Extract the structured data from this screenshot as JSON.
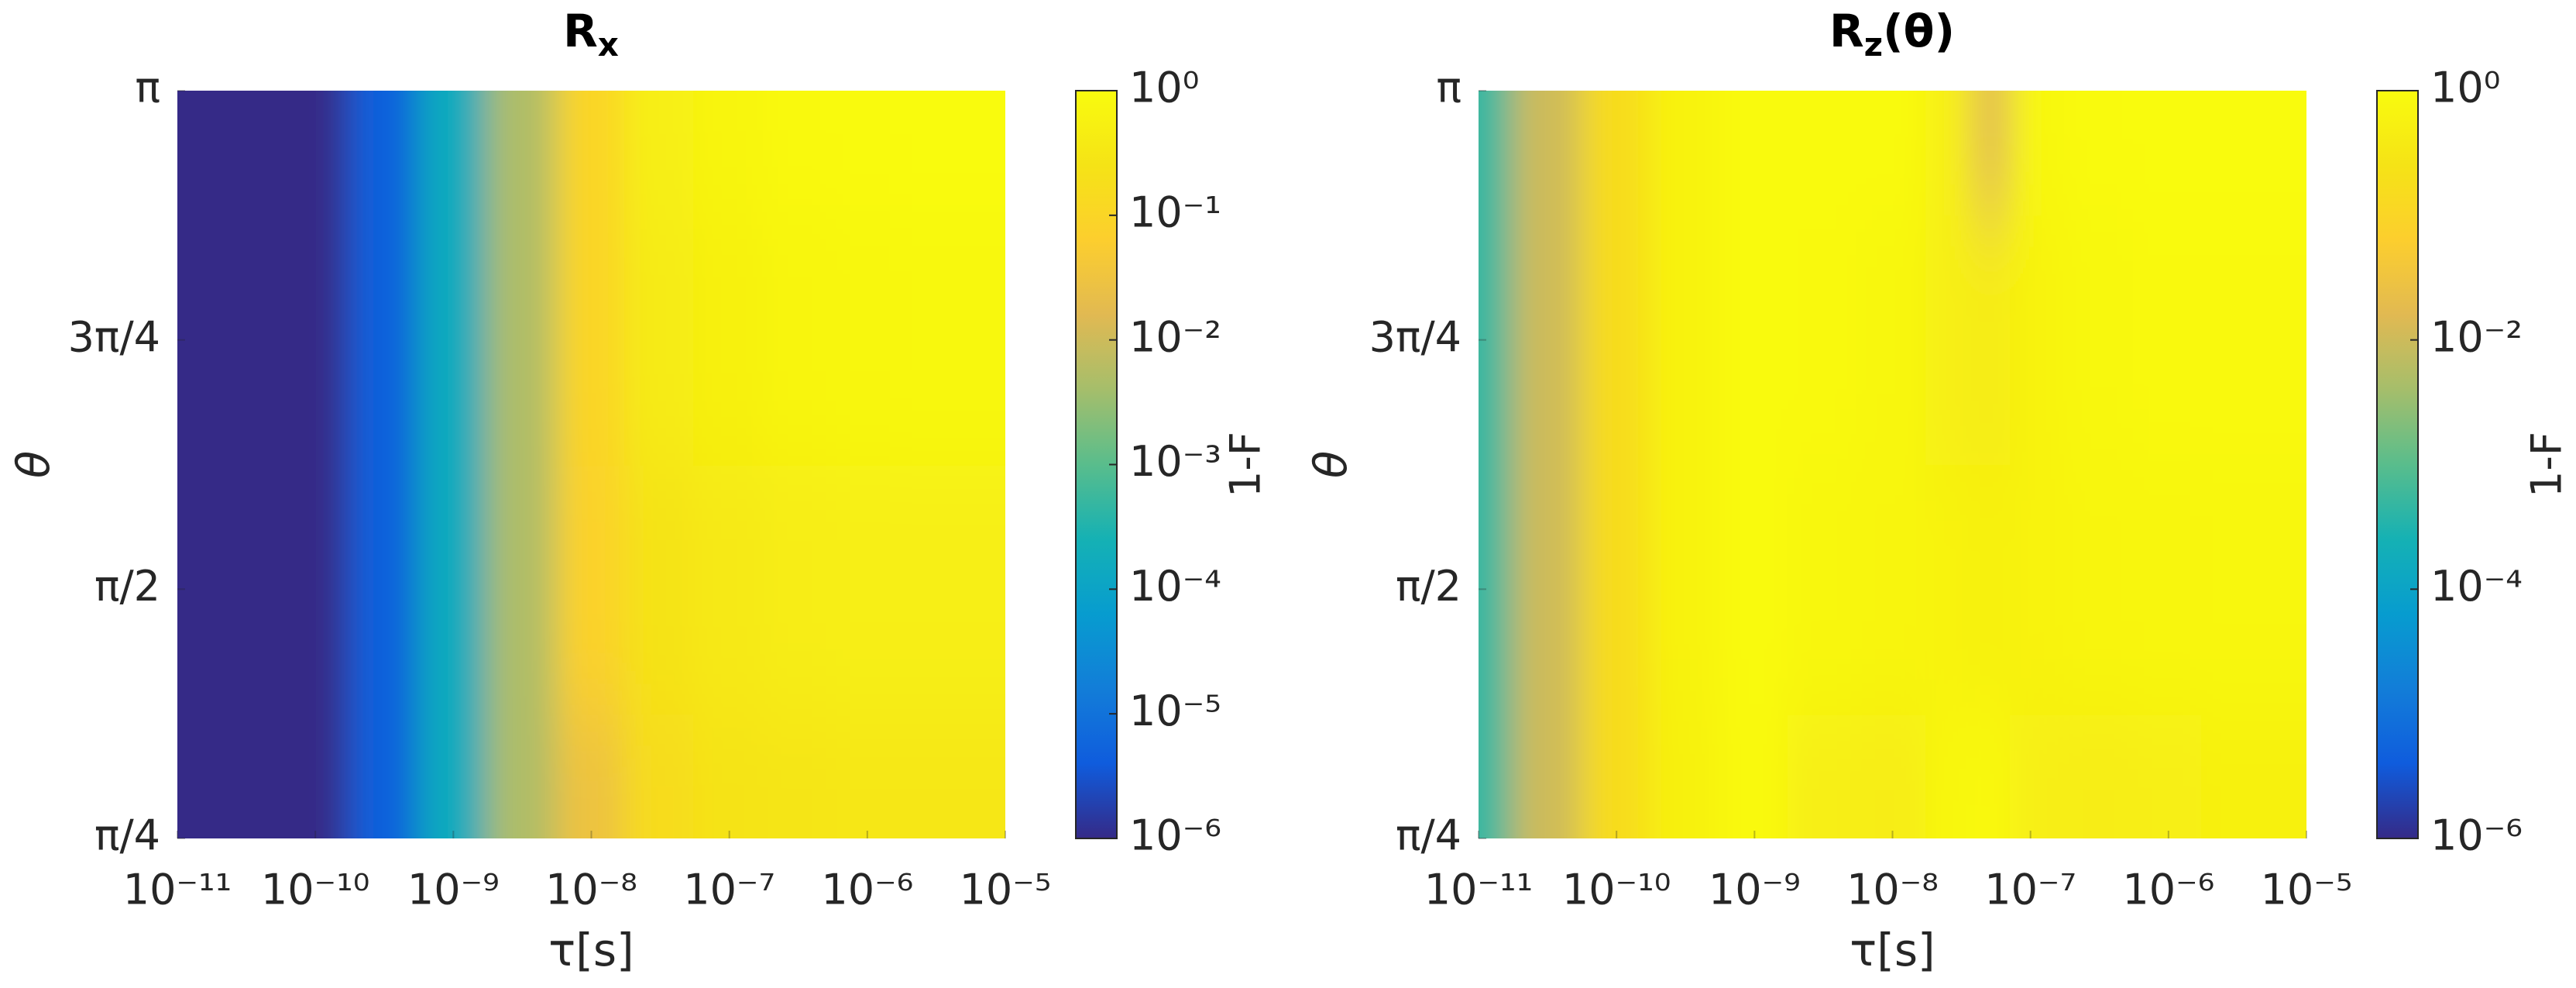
{
  "chart_data": [
    {
      "type": "heatmap",
      "title": "R",
      "title_sub": "x",
      "xlabel": "τ[s]",
      "ylabel": "θ",
      "xscale": "log",
      "x": [
        1e-11,
        3e-11,
        1e-10,
        3e-10,
        1e-09,
        3e-09,
        1e-08,
        3e-08,
        1e-07,
        3e-07,
        1e-06,
        3e-06,
        1e-05
      ],
      "y": [
        0.7854,
        1.5708,
        2.3562,
        3.1416
      ],
      "z": [
        [
          1e-06,
          1e-06,
          1e-06,
          5e-06,
          0.00016,
          0.005,
          0.03,
          0.16,
          0.25,
          0.28,
          0.32,
          0.32,
          0.32
        ],
        [
          1e-06,
          1e-06,
          1e-06,
          5e-06,
          0.00016,
          0.005,
          0.08,
          0.25,
          0.35,
          0.45,
          0.5,
          0.5,
          0.5
        ],
        [
          1e-06,
          1e-06,
          1e-06,
          5e-06,
          0.00016,
          0.005,
          0.1,
          0.4,
          0.56,
          0.7,
          0.8,
          0.83,
          0.83
        ],
        [
          1e-06,
          1e-06,
          1e-06,
          5e-06,
          0.00016,
          0.005,
          0.1,
          0.5,
          0.7,
          0.9,
          0.95,
          0.98,
          0.98
        ]
      ],
      "xlim": [
        1e-11,
        1e-05
      ],
      "xticks": [
        {
          "value": 1e-11,
          "label": "10⁻¹¹"
        },
        {
          "value": 1e-10,
          "label": "10⁻¹⁰"
        },
        {
          "value": 1e-09,
          "label": "10⁻⁹"
        },
        {
          "value": 1e-08,
          "label": "10⁻⁸"
        },
        {
          "value": 1e-07,
          "label": "10⁻⁷"
        },
        {
          "value": 1e-06,
          "label": "10⁻⁶"
        },
        {
          "value": 1e-05,
          "label": "10⁻⁵"
        }
      ],
      "ylim": [
        0.7854,
        3.1416
      ],
      "yticks": [
        {
          "value": 0.7854,
          "label": "π/4"
        },
        {
          "value": 1.5708,
          "label": "π/2"
        },
        {
          "value": 2.3562,
          "label": "3π/4"
        },
        {
          "value": 3.1416,
          "label": "π"
        }
      ],
      "colorbar": {
        "label": "1-F",
        "scale": "log",
        "lim": [
          1e-06,
          1
        ],
        "ticks": [
          {
            "value": 1,
            "label": "10⁰"
          },
          {
            "value": 0.1,
            "label": "10⁻¹"
          },
          {
            "value": 0.01,
            "label": "10⁻²"
          },
          {
            "value": 0.001,
            "label": "10⁻³"
          },
          {
            "value": 0.0001,
            "label": "10⁻⁴"
          },
          {
            "value": 1e-05,
            "label": "10⁻⁵"
          },
          {
            "value": 1e-06,
            "label": "10⁻⁶"
          }
        ]
      }
    },
    {
      "type": "heatmap",
      "title": "R",
      "title_sub": "z",
      "title_suffix": "(θ)",
      "xlabel": "τ[s]",
      "ylabel": "θ",
      "xscale": "log",
      "x": [
        1e-11,
        3e-11,
        1e-10,
        3e-10,
        1e-09,
        3e-09,
        1e-08,
        3e-08,
        5e-08,
        1e-07,
        3e-07,
        1e-06,
        3e-06,
        1e-05
      ],
      "y": [
        0.7854,
        1.5708,
        2.3562,
        3.1416
      ],
      "z": [
        [
          0.0005,
          0.01,
          0.16,
          0.56,
          0.9,
          0.5,
          0.45,
          0.8,
          0.9,
          0.5,
          0.45,
          0.5,
          0.56,
          0.56
        ],
        [
          0.0005,
          0.01,
          0.16,
          0.63,
          0.93,
          0.8,
          0.7,
          0.63,
          0.56,
          0.63,
          0.7,
          0.76,
          0.8,
          0.8
        ],
        [
          0.0005,
          0.01,
          0.16,
          0.63,
          0.93,
          0.9,
          0.8,
          0.5,
          0.4,
          0.63,
          0.83,
          0.9,
          0.9,
          0.9
        ],
        [
          0.0005,
          0.01,
          0.16,
          0.63,
          0.95,
          0.93,
          0.93,
          0.5,
          0.016,
          0.8,
          0.95,
          0.98,
          0.98,
          0.98
        ]
      ],
      "xlim": [
        1e-11,
        1e-05
      ],
      "xticks": [
        {
          "value": 1e-11,
          "label": "10⁻¹¹"
        },
        {
          "value": 1e-10,
          "label": "10⁻¹⁰"
        },
        {
          "value": 1e-09,
          "label": "10⁻⁹"
        },
        {
          "value": 1e-08,
          "label": "10⁻⁸"
        },
        {
          "value": 1e-07,
          "label": "10⁻⁷"
        },
        {
          "value": 1e-06,
          "label": "10⁻⁶"
        },
        {
          "value": 1e-05,
          "label": "10⁻⁵"
        }
      ],
      "ylim": [
        0.7854,
        3.1416
      ],
      "yticks": [
        {
          "value": 0.7854,
          "label": "π/4"
        },
        {
          "value": 1.5708,
          "label": "π/2"
        },
        {
          "value": 2.3562,
          "label": "3π/4"
        },
        {
          "value": 3.1416,
          "label": "π"
        }
      ],
      "colorbar": {
        "label": "1-F",
        "scale": "log",
        "lim": [
          1e-06,
          1
        ],
        "ticks": [
          {
            "value": 1,
            "label": "10⁰"
          },
          {
            "value": 0.01,
            "label": "10⁻²"
          },
          {
            "value": 0.0001,
            "label": "10⁻⁴"
          },
          {
            "value": 1e-06,
            "label": "10⁻⁶"
          }
        ]
      }
    }
  ]
}
